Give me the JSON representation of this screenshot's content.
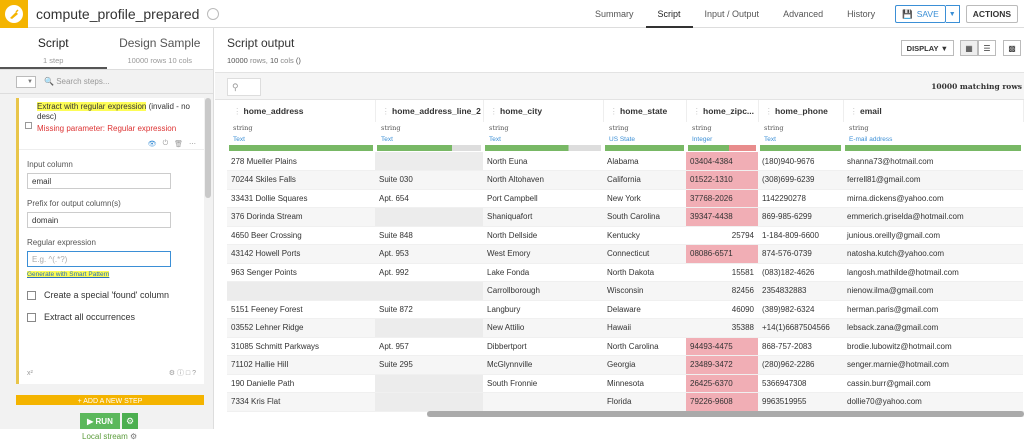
{
  "header": {
    "title": "compute_profile_prepared",
    "tabs": [
      "Summary",
      "Script",
      "Input / Output",
      "Advanced",
      "History"
    ],
    "active_tab": "Script",
    "save_label": "SAVE",
    "actions_label": "ACTIONS",
    "colors": {
      "brand": "#f4b400",
      "accent": "#3b8fd6"
    }
  },
  "left": {
    "tab_script": "Script",
    "tab_script_sub": "1 step",
    "tab_design": "Design Sample",
    "tab_design_sub": "10000 rows 10 cols",
    "search_placeholder": "Search steps...",
    "step": {
      "title_highlight": "Extract with regular expression",
      "title_rest": " (invalid - no desc)",
      "error": "Missing parameter: Regular expression",
      "input_column_label": "Input column",
      "input_column_value": "email",
      "prefix_label": "Prefix for output column(s)",
      "prefix_value": "domain",
      "regex_label": "Regular expression",
      "regex_placeholder": "E.g. ^(.*?)",
      "smart_pattern_link": "Generate with Smart Pattern",
      "opt_found": "Create a special 'found' column",
      "opt_all": "Extract all occurrences",
      "footer_left": "x²"
    },
    "add_step": "+ ADD A NEW STEP",
    "run_label": "RUN",
    "local_stream": "Local stream"
  },
  "right": {
    "title": "Script output",
    "subtitle_rows": "10000",
    "subtitle_rows_suffix": " rows,",
    "subtitle_cols": "10",
    "subtitle_cols_suffix": " cols",
    "subtitle_paren": "()",
    "display_label": "DISPLAY",
    "matching": "10000 matching rows",
    "columns": [
      {
        "name": "home_address",
        "type": "string",
        "meaning": "Text",
        "quality": "full"
      },
      {
        "name": "home_address_line_2",
        "type": "string",
        "meaning": "Text",
        "quality": "part"
      },
      {
        "name": "home_city",
        "type": "string",
        "meaning": "Text",
        "quality": "part"
      },
      {
        "name": "home_state",
        "type": "string",
        "meaning": "US State",
        "quality": "full"
      },
      {
        "name": "home_zipc...",
        "type": "string",
        "meaning": "Integer",
        "quality": "red"
      },
      {
        "name": "home_phone",
        "type": "string",
        "meaning": "Text",
        "quality": "full"
      },
      {
        "name": "email",
        "type": "string",
        "meaning": "E-mail address",
        "quality": "full"
      }
    ],
    "rows": [
      [
        "278 Mueller Plains",
        "",
        "North Euna",
        "Alabama",
        "03404-4384",
        "(180)940-9676",
        "shanna73@hotmail.com"
      ],
      [
        "70244 Skiles Falls",
        "Suite 030",
        "North Altohaven",
        "California",
        "01522-1310",
        "(308)699-6239",
        "ferrell81@gmail.com"
      ],
      [
        "33431 Dollie Squares",
        "Apt. 654",
        "Port Campbell",
        "New York",
        "37768-2026",
        "1142290278",
        "mirna.dickens@yahoo.com"
      ],
      [
        "376 Dorinda Stream",
        "",
        "Shaniquafort",
        "South Carolina",
        "39347-4438",
        "869-985-6299",
        "emmerich.griselda@hotmail.com"
      ],
      [
        "4650 Beer Crossing",
        "Suite 848",
        "North Dellside",
        "Kentucky",
        "25794",
        "1-184-809-6600",
        "junious.oreilly@gmail.com"
      ],
      [
        "43142 Howell Ports",
        "Apt. 953",
        "West Emory",
        "Connecticut",
        "08086-6571",
        "874-576-0739",
        "natosha.kutch@yahoo.com"
      ],
      [
        "963 Senger Points",
        "Apt. 992",
        "Lake Fonda",
        "North Dakota",
        "15581",
        "(083)182-4626",
        "langosh.mathilde@hotmail.com"
      ],
      [
        "",
        "",
        "Carrollborough",
        "Wisconsin",
        "82456",
        "2354832883",
        "nienow.ilma@gmail.com"
      ],
      [
        "5151 Feeney Forest",
        "Suite 872",
        "Langbury",
        "Delaware",
        "46090",
        "(389)982-6324",
        "herman.paris@gmail.com"
      ],
      [
        "03552 Lehner Ridge",
        "",
        "New Attilio",
        "Hawaii",
        "35388",
        "+14(1)6687504566",
        "lebsack.zana@gmail.com"
      ],
      [
        "31085 Schmitt Parkways",
        "Apt. 957",
        "Dibbertport",
        "North Carolina",
        "94493-4475",
        "868-757-2083",
        "brodie.lubowitz@hotmail.com"
      ],
      [
        "71102 Hallie Hill",
        "Suite 295",
        "McGlynnville",
        "Georgia",
        "23489-3472",
        "(280)962-2286",
        "senger.marnie@hotmail.com"
      ],
      [
        "190 Danielle Path",
        "",
        "South Fronnie",
        "Minnesota",
        "26425-6370",
        "5366947308",
        "cassin.burr@gmail.com"
      ],
      [
        "7334 Kris Flat",
        "",
        "",
        "Florida",
        "79226-9608",
        "9963519955",
        "dollie70@yahoo.com"
      ]
    ]
  }
}
